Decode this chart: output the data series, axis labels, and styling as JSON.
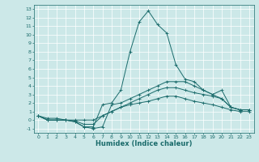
{
  "title": "",
  "xlabel": "Humidex (Indice chaleur)",
  "bg_color": "#cce8e8",
  "grid_color": "#ffffff",
  "line_color": "#1a6b6b",
  "xlim": [
    -0.5,
    23.5
  ],
  "ylim": [
    -1.5,
    13.5
  ],
  "xticks": [
    0,
    1,
    2,
    3,
    4,
    5,
    6,
    7,
    8,
    9,
    10,
    11,
    12,
    13,
    14,
    15,
    16,
    17,
    18,
    19,
    20,
    21,
    22,
    23
  ],
  "yticks": [
    -1,
    0,
    1,
    2,
    3,
    4,
    5,
    6,
    7,
    8,
    9,
    10,
    11,
    12,
    13
  ],
  "series": [
    [
      0.5,
      0.2,
      0.2,
      0.0,
      -0.2,
      -0.8,
      -0.8,
      1.8,
      2.0,
      3.5,
      8.0,
      11.5,
      12.8,
      11.2,
      10.2,
      6.5,
      4.8,
      4.5,
      3.5,
      3.0,
      3.5,
      1.5,
      1.2,
      1.2
    ],
    [
      0.5,
      0.0,
      0.0,
      0.0,
      -0.2,
      -0.8,
      -1.0,
      -0.8,
      1.8,
      2.0,
      2.5,
      3.0,
      3.5,
      4.0,
      4.5,
      4.5,
      4.5,
      4.0,
      3.5,
      3.0,
      2.5,
      1.5,
      1.2,
      1.2
    ],
    [
      0.5,
      0.0,
      0.0,
      0.0,
      -0.1,
      -0.5,
      -0.5,
      0.5,
      1.0,
      1.5,
      2.0,
      2.5,
      3.0,
      3.5,
      3.8,
      3.8,
      3.5,
      3.2,
      3.0,
      2.8,
      2.5,
      1.5,
      1.2,
      1.2
    ],
    [
      0.5,
      0.0,
      0.0,
      0.0,
      0.0,
      0.0,
      0.0,
      0.5,
      1.0,
      1.5,
      1.8,
      2.0,
      2.2,
      2.5,
      2.8,
      2.8,
      2.5,
      2.2,
      2.0,
      1.8,
      1.5,
      1.2,
      1.0,
      1.0
    ]
  ],
  "xlabel_fontsize": 6,
  "tick_fontsize": 4.5,
  "linewidth": 0.7,
  "markersize": 2.5
}
